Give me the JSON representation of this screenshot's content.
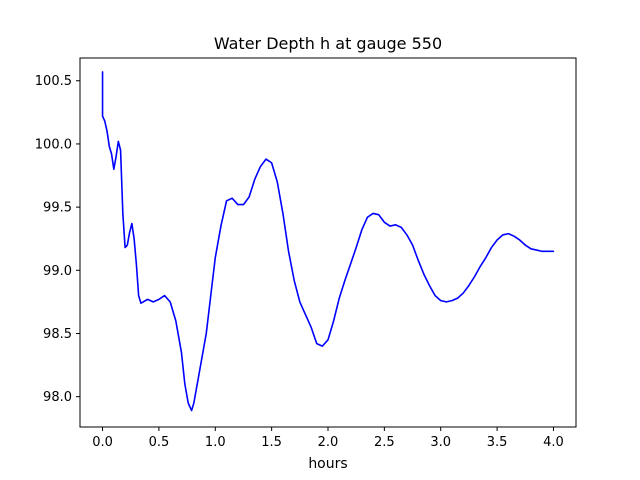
{
  "chart_data": {
    "type": "line",
    "title": "Water Depth h at gauge 550",
    "xlabel": "hours",
    "ylabel": "",
    "xlim": [
      -0.2,
      4.2
    ],
    "ylim": [
      97.76,
      100.68
    ],
    "xticks": [
      0.0,
      0.5,
      1.0,
      1.5,
      2.0,
      2.5,
      3.0,
      3.5,
      4.0
    ],
    "xtick_labels": [
      "0.0",
      "0.5",
      "1.0",
      "1.5",
      "2.0",
      "2.5",
      "3.0",
      "3.5",
      "4.0"
    ],
    "yticks": [
      98.0,
      98.5,
      99.0,
      99.5,
      100.0,
      100.5
    ],
    "ytick_labels": [
      "98.0",
      "98.5",
      "99.0",
      "99.5",
      "100.0",
      "100.5"
    ],
    "grid": false,
    "legend": "none",
    "series": [
      {
        "color": "#0000ff",
        "x": [
          0.0,
          0.0,
          0.0,
          0.02,
          0.04,
          0.06,
          0.08,
          0.1,
          0.12,
          0.14,
          0.16,
          0.18,
          0.2,
          0.22,
          0.24,
          0.26,
          0.28,
          0.3,
          0.32,
          0.34,
          0.36,
          0.38,
          0.4,
          0.45,
          0.5,
          0.55,
          0.6,
          0.65,
          0.7,
          0.73,
          0.76,
          0.79,
          0.81,
          0.83,
          0.85,
          0.88,
          0.92,
          0.96,
          1.0,
          1.05,
          1.1,
          1.15,
          1.2,
          1.25,
          1.3,
          1.35,
          1.4,
          1.45,
          1.5,
          1.55,
          1.6,
          1.65,
          1.7,
          1.75,
          1.8,
          1.85,
          1.9,
          1.95,
          2.0,
          2.05,
          2.1,
          2.15,
          2.2,
          2.25,
          2.3,
          2.35,
          2.4,
          2.45,
          2.5,
          2.55,
          2.6,
          2.65,
          2.7,
          2.75,
          2.8,
          2.85,
          2.9,
          2.95,
          3.0,
          3.05,
          3.1,
          3.15,
          3.2,
          3.25,
          3.3,
          3.35,
          3.4,
          3.45,
          3.5,
          3.55,
          3.6,
          3.65,
          3.7,
          3.75,
          3.8,
          3.85,
          3.9,
          3.95,
          4.0
        ],
        "y": [
          100.57,
          100.22,
          100.22,
          100.18,
          100.1,
          99.98,
          99.92,
          99.8,
          99.9,
          100.02,
          99.95,
          99.45,
          99.18,
          99.2,
          99.3,
          99.37,
          99.25,
          99.05,
          98.8,
          98.74,
          98.75,
          98.76,
          98.77,
          98.75,
          98.77,
          98.8,
          98.75,
          98.6,
          98.35,
          98.1,
          97.95,
          97.89,
          97.95,
          98.05,
          98.15,
          98.3,
          98.5,
          98.8,
          99.1,
          99.35,
          99.55,
          99.57,
          99.52,
          99.52,
          99.58,
          99.72,
          99.82,
          99.88,
          99.85,
          99.7,
          99.45,
          99.15,
          98.92,
          98.75,
          98.65,
          98.55,
          98.42,
          98.4,
          98.45,
          98.6,
          98.78,
          98.92,
          99.05,
          99.18,
          99.32,
          99.42,
          99.45,
          99.44,
          99.38,
          99.35,
          99.36,
          99.34,
          99.28,
          99.2,
          99.08,
          98.97,
          98.88,
          98.8,
          98.76,
          98.75,
          98.76,
          98.78,
          98.82,
          98.88,
          98.95,
          99.03,
          99.1,
          99.18,
          99.24,
          99.28,
          99.29,
          99.27,
          99.24,
          99.2,
          99.17,
          99.16,
          99.15,
          99.15,
          99.15
        ]
      }
    ]
  }
}
